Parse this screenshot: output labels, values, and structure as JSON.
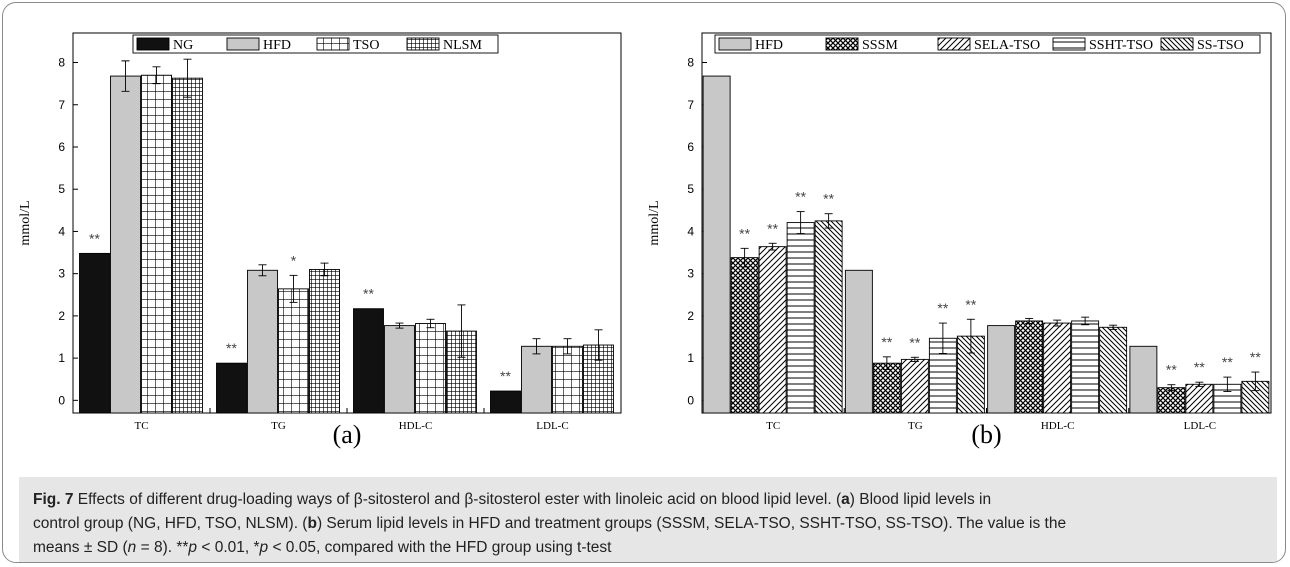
{
  "chart_data": [
    {
      "type": "bar",
      "panel_label": "(a)",
      "ylabel": "mmol/L",
      "ylim": [
        -0.3,
        8.7
      ],
      "yticks": [
        0,
        1,
        2,
        3,
        4,
        5,
        6,
        7,
        8
      ],
      "categories": [
        "TC",
        "TG",
        "HDL-C",
        "LDL-C"
      ],
      "legend_position": "top",
      "series": [
        {
          "name": "NG",
          "pattern": "solid-black",
          "values": [
            3.48,
            0.88,
            2.17,
            0.22
          ],
          "errors": [
            0,
            0,
            0,
            0
          ],
          "annotations": [
            "**",
            "**",
            "**",
            "**"
          ]
        },
        {
          "name": "HFD",
          "pattern": "solid-gray",
          "values": [
            7.68,
            3.08,
            1.77,
            1.28
          ],
          "errors": [
            0.36,
            0.13,
            0.06,
            0.18
          ],
          "annotations": [
            "",
            "",
            "",
            ""
          ]
        },
        {
          "name": "TSO",
          "pattern": "grid",
          "values": [
            7.7,
            2.64,
            1.82,
            1.28
          ],
          "errors": [
            0.2,
            0.32,
            0.1,
            0.18
          ],
          "annotations": [
            "",
            "*",
            "",
            ""
          ]
        },
        {
          "name": "NLSM",
          "pattern": "fine-grid",
          "values": [
            7.63,
            3.1,
            1.64,
            1.31
          ],
          "errors": [
            0.45,
            0.15,
            0.62,
            0.36
          ],
          "annotations": [
            "",
            "",
            "",
            ""
          ]
        }
      ]
    },
    {
      "type": "bar",
      "panel_label": "(b)",
      "ylabel": "mmol/L",
      "ylim": [
        -0.3,
        8.7
      ],
      "yticks": [
        0,
        1,
        2,
        3,
        4,
        5,
        6,
        7,
        8
      ],
      "categories": [
        "TC",
        "TG",
        "HDL-C",
        "LDL-C"
      ],
      "legend_position": "top",
      "series": [
        {
          "name": "HFD",
          "pattern": "solid-gray",
          "values": [
            7.68,
            3.08,
            1.77,
            1.28
          ],
          "errors": [
            0,
            0,
            0,
            0
          ],
          "annotations": [
            "",
            "",
            "",
            ""
          ]
        },
        {
          "name": "SSSM",
          "pattern": "crosshatch",
          "values": [
            3.38,
            0.88,
            1.88,
            0.3
          ],
          "errors": [
            0.22,
            0.15,
            0.06,
            0.07
          ],
          "annotations": [
            "**",
            "**",
            "",
            "**"
          ]
        },
        {
          "name": "SELA-TSO",
          "pattern": "diagonal-up",
          "values": [
            3.64,
            0.97,
            1.83,
            0.38
          ],
          "errors": [
            0.08,
            0.05,
            0.07,
            0.05
          ],
          "annotations": [
            "**",
            "**",
            "",
            "**"
          ]
        },
        {
          "name": "SSHT-TSO",
          "pattern": "horizontal",
          "values": [
            4.21,
            1.47,
            1.88,
            0.38
          ],
          "errors": [
            0.26,
            0.36,
            0.09,
            0.17
          ],
          "annotations": [
            "**",
            "**",
            "",
            "**"
          ]
        },
        {
          "name": "SS-TSO",
          "pattern": "diagonal-down",
          "values": [
            4.25,
            1.52,
            1.73,
            0.45
          ],
          "errors": [
            0.17,
            0.4,
            0.05,
            0.22
          ],
          "annotations": [
            "**",
            "**",
            "",
            "**"
          ]
        }
      ]
    }
  ],
  "caption": {
    "fig_label": "Fig. 7",
    "line1_rest": " Effects of different drug-loading ways of β-sitosterol and β-sitosterol ester with linoleic acid on blood lipid level. (",
    "a": "a",
    "line1_end": ") Blood lipid levels in",
    "line2_start": "control group (NG, HFD, TSO, NLSM). (",
    "b": "b",
    "line2_end": ") Serum lipid levels in HFD and treatment groups (SSSM, SELA-TSO, SSHT-TSO, SS-TSO). The value is the",
    "line3_start": "means ± SD (",
    "n": "n",
    "line3_mid1": " = 8). **",
    "p1": "p",
    "line3_mid2": " < 0.01, *",
    "p2": "p",
    "line3_end": " < 0.05, compared with the HFD group using t-test"
  }
}
